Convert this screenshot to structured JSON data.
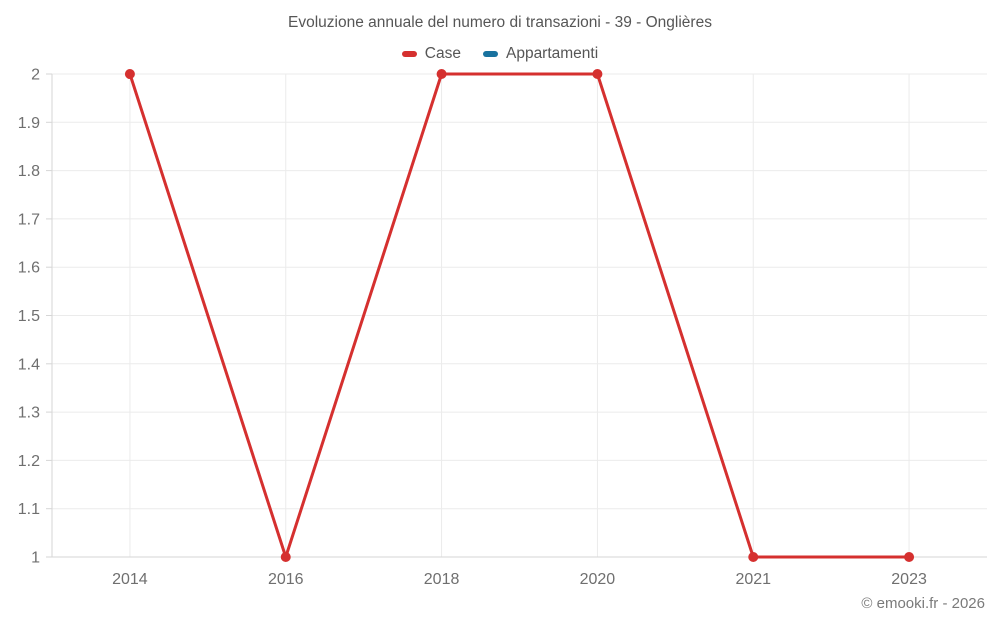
{
  "header": {
    "title": "Evoluzione annuale del numero di transazioni - 39 - Onglières"
  },
  "legend": [
    {
      "label": "Case",
      "color": "#d5302f"
    },
    {
      "label": "Appartamenti",
      "color": "#19729f"
    }
  ],
  "footer": {
    "copyright": "© emooki.fr - 2026"
  },
  "colors": {
    "grid": "#ebebeb",
    "axis": "#d6d6d6",
    "tick_text": "#6f6f6f",
    "series_case": "#d5302f",
    "series_appartamenti": "#19729f"
  },
  "chart_data": {
    "type": "line",
    "title": "Evoluzione annuale del numero di transazioni - 39 - Onglières",
    "categories": [
      "2014",
      "2016",
      "2018",
      "2020",
      "2021",
      "2023"
    ],
    "series": [
      {
        "name": "Case",
        "color": "#d5302f",
        "values": [
          2,
          1,
          2,
          2,
          1,
          1
        ]
      },
      {
        "name": "Appartamenti",
        "color": "#19729f",
        "values": []
      }
    ],
    "xlabel": "",
    "ylabel": "",
    "ylim": [
      1,
      2
    ],
    "ytick_step": 0.1,
    "grid": true,
    "legend_position": "top",
    "marker_radius": 5,
    "line_width": 3
  }
}
